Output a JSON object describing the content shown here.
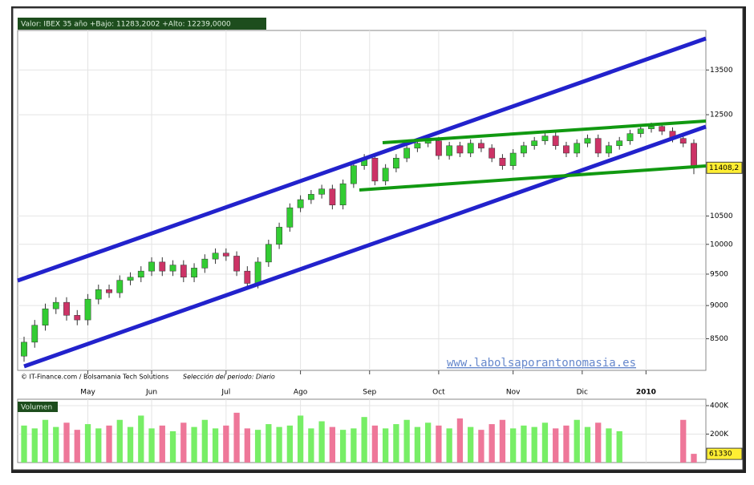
{
  "chart_data": {
    "type": "candlestick",
    "title": "Valor: IBEX 35   año +Bajo: 11283,2002 +Alto: 12239,0000",
    "source": "© IT-Finance.com / Bolsamania Tech Solutions",
    "period": "Selección del periodo: Diario",
    "watermark": "www.labolsaporantonomasia.es",
    "log_scale": true,
    "grid": true,
    "up_color": "#33cc33",
    "down_color": "#cc3366",
    "open": [
      8250,
      8450,
      8700,
      8950,
      9050,
      8850,
      8780,
      9100,
      9250,
      9200,
      9400,
      9450,
      9550,
      9700,
      9550,
      9650,
      9450,
      9600,
      9750,
      9850,
      9800,
      9550,
      9350,
      9700,
      10000,
      10300,
      10650,
      10800,
      10900,
      11000,
      10700,
      11100,
      11450,
      11600,
      11150,
      11400,
      11600,
      11800,
      11900,
      11950,
      11650,
      11850,
      11700,
      11900,
      11800,
      11600,
      11450,
      11700,
      11850,
      11950,
      12050,
      11850,
      11700,
      11900,
      12000,
      11700,
      11850,
      11950,
      12100,
      12200,
      12250,
      12150,
      12000,
      11900
    ],
    "high": [
      8530,
      8780,
      9030,
      9130,
      9130,
      8930,
      9180,
      9330,
      9330,
      9480,
      9530,
      9630,
      9780,
      9780,
      9730,
      9730,
      9680,
      9830,
      9930,
      9930,
      9880,
      9630,
      9780,
      10080,
      10380,
      10730,
      10880,
      10980,
      11080,
      11080,
      11180,
      11530,
      11680,
      11680,
      11480,
      11680,
      11880,
      11980,
      12030,
      12030,
      11930,
      11930,
      11980,
      11980,
      11880,
      11680,
      11780,
      11930,
      12030,
      12130,
      12130,
      11930,
      11980,
      12080,
      12080,
      11930,
      12030,
      12180,
      12280,
      12330,
      12330,
      12230,
      12080,
      11980
    ],
    "low": [
      8170,
      8370,
      8620,
      8870,
      8770,
      8700,
      8700,
      9020,
      9120,
      9120,
      9320,
      9370,
      9470,
      9470,
      9470,
      9370,
      9370,
      9520,
      9670,
      9720,
      9470,
      9270,
      9270,
      9620,
      9920,
      10220,
      10570,
      10720,
      10820,
      10620,
      10620,
      11020,
      11370,
      11070,
      11070,
      11320,
      11520,
      11720,
      11820,
      11570,
      11570,
      11620,
      11620,
      11720,
      11520,
      11370,
      11370,
      11620,
      11770,
      11870,
      11770,
      11620,
      11620,
      11820,
      11620,
      11620,
      11770,
      11870,
      12020,
      12120,
      12070,
      11920,
      11820,
      11283.2
    ],
    "close": [
      8450,
      8700,
      8950,
      9050,
      8850,
      8780,
      9100,
      9250,
      9200,
      9400,
      9450,
      9550,
      9700,
      9550,
      9650,
      9450,
      9600,
      9750,
      9850,
      9800,
      9550,
      9350,
      9700,
      10000,
      10300,
      10650,
      10800,
      10900,
      11000,
      10700,
      11100,
      11450,
      11600,
      11150,
      11400,
      11600,
      11800,
      11900,
      11950,
      11650,
      11850,
      11700,
      11900,
      11800,
      11600,
      11450,
      11700,
      11850,
      11950,
      12050,
      11850,
      11700,
      11900,
      12000,
      11700,
      11850,
      11950,
      12100,
      12200,
      12250,
      12150,
      12000,
      11900,
      11408.2
    ],
    "last_price": {
      "value": 11408.2,
      "label": "11408,2"
    },
    "ylim": [
      8050,
      14450
    ],
    "yticks": [
      8500,
      9000,
      9500,
      10000,
      10500,
      12500,
      13500
    ],
    "xticks": [
      {
        "value": 6,
        "label": "May"
      },
      {
        "value": 12,
        "label": "Jun"
      },
      {
        "value": 19,
        "label": "Jul"
      },
      {
        "value": 26,
        "label": "Ago"
      },
      {
        "value": 32.5,
        "label": "Sep"
      },
      {
        "value": 39,
        "label": "Oct"
      },
      {
        "value": 46,
        "label": "Nov"
      },
      {
        "value": 52.5,
        "label": "Dic"
      },
      {
        "value": 58.5,
        "label": "2010"
      }
    ],
    "volume": {
      "name": "Volumen",
      "values": [
        260000,
        240000,
        300000,
        250000,
        280000,
        230000,
        270000,
        240000,
        260000,
        300000,
        250000,
        330000,
        240000,
        260000,
        220000,
        280000,
        250000,
        300000,
        240000,
        260000,
        350000,
        240000,
        230000,
        270000,
        250000,
        260000,
        330000,
        240000,
        290000,
        250000,
        230000,
        240000,
        320000,
        260000,
        240000,
        270000,
        300000,
        250000,
        280000,
        260000,
        240000,
        310000,
        250000,
        230000,
        270000,
        300000,
        240000,
        260000,
        250000,
        280000,
        240000,
        260000,
        300000,
        250000,
        280000,
        240000,
        220000,
        null,
        null,
        null,
        null,
        null,
        300000,
        61330
      ],
      "up_color": "#77ee66",
      "down_color": "#ee7799",
      "ylim": [
        0,
        445000
      ],
      "yticks": [
        {
          "value": 200000,
          "label": "200K"
        },
        {
          "value": 400000,
          "label": "400K"
        }
      ]
    }
  }
}
